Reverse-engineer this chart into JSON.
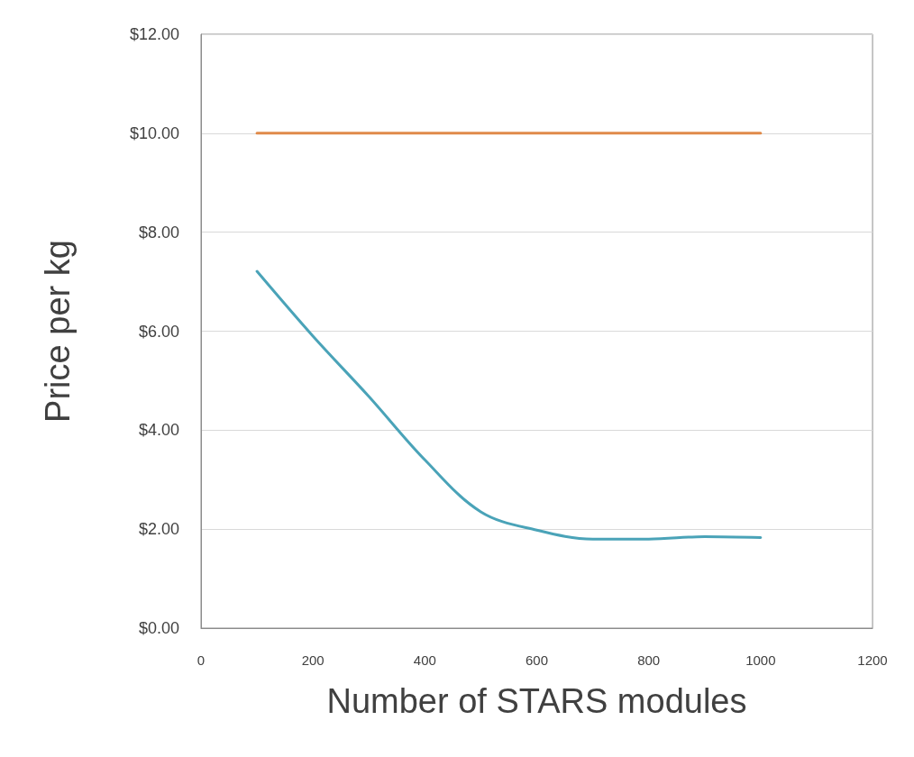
{
  "chart_data": {
    "type": "line",
    "xlabel": "Number of STARS modules",
    "ylabel": "Price per kg",
    "series": [
      {
        "color": "#4aa3b8",
        "x": [
          100,
          200,
          300,
          400,
          500,
          600,
          700,
          800,
          900,
          1000
        ],
        "values": [
          7.21,
          5.9,
          4.68,
          3.4,
          2.35,
          1.98,
          1.8,
          1.8,
          1.85,
          1.83
        ]
      },
      {
        "color": "#e08a4a",
        "x": [
          100,
          1000
        ],
        "values": [
          10,
          10
        ]
      }
    ],
    "xlim": [
      0,
      1200
    ],
    "xticks": [
      0,
      200,
      400,
      600,
      800,
      1000,
      1200
    ],
    "ylim": [
      0,
      12
    ],
    "yticks": [
      {
        "value": 0,
        "label": "$0.00"
      },
      {
        "value": 2,
        "label": "$2.00"
      },
      {
        "value": 4,
        "label": "$4.00"
      },
      {
        "value": 6,
        "label": "$6.00"
      },
      {
        "value": 8,
        "label": "$8.00"
      },
      {
        "value": 10,
        "label": "$10.00"
      },
      {
        "value": 12,
        "label": "$12.00"
      }
    ],
    "grid": "y",
    "marker": "none",
    "line_style": "solid"
  }
}
